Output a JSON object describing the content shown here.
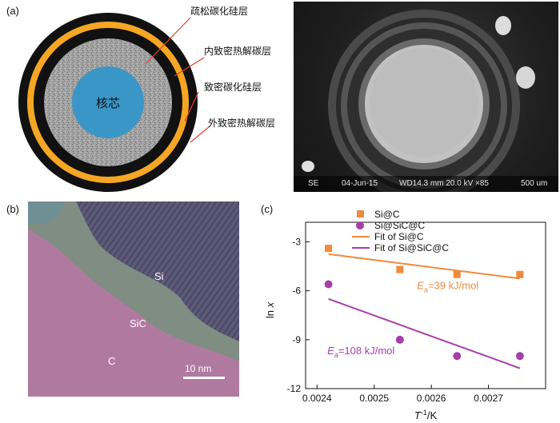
{
  "panels": {
    "a": "(a)",
    "b": "(b)",
    "c": "(c)"
  },
  "schematic": {
    "core_label": "核芯",
    "layers": [
      "疏松碳化硅层",
      "内致密热解碳层",
      "致密碳化硅层",
      "外致密热解碳层"
    ],
    "colors": {
      "core": "#3b96c8",
      "porous_sic": "#9a9a9a",
      "dense_pyc": "#111111",
      "dense_sic": "#f5a623",
      "leader": "#e0412d"
    }
  },
  "sem": {
    "info": [
      "SE",
      "04-Jun-15",
      "WD14.3 mm 20.0 kV ×85",
      "500 um"
    ]
  },
  "tem": {
    "labels": [
      "Si",
      "SiC",
      "C"
    ],
    "scale_bar": "10 nm"
  },
  "chart_data": {
    "type": "scatter",
    "xlabel": "T⁻¹/K",
    "ylabel": "ln x",
    "xlim": [
      0.00238,
      0.0028
    ],
    "ylim": [
      -12,
      -1.8
    ],
    "xticks": [
      "0.0024",
      "0.0025",
      "0.0026",
      "0.0027"
    ],
    "yticks": [
      "-3",
      "-6",
      "-9",
      "-12"
    ],
    "series": [
      {
        "name": "Si@C",
        "marker": "square",
        "color": "#f08a3c",
        "x": [
          0.00242,
          0.002545,
          0.002645,
          0.002755
        ],
        "y": [
          -3.4,
          -4.7,
          -5.0,
          -5.0
        ]
      },
      {
        "name": "Si@SiC@C",
        "marker": "circle",
        "color": "#a540a9",
        "x": [
          0.00242,
          0.002545,
          0.002645,
          0.002755
        ],
        "y": [
          -5.6,
          -9.0,
          -10.0,
          -10.0
        ]
      }
    ],
    "fits": [
      {
        "name": "Fit of Si@C",
        "color": "#f08a3c",
        "x": [
          0.00242,
          0.002755
        ],
        "y": [
          -3.75,
          -5.25
        ]
      },
      {
        "name": "Fit of Si@SiC@C",
        "color": "#a540a9",
        "x": [
          0.00242,
          0.002755
        ],
        "y": [
          -6.5,
          -10.75
        ]
      }
    ],
    "annotations": [
      {
        "label": "Ea=39 kJ/mol",
        "base": "E",
        "sub": "a",
        "rest": "=39 kJ/mol",
        "color": "#f08a3c"
      },
      {
        "label": "Ea=108 kJ/mol",
        "base": "E",
        "sub": "a",
        "rest": "=108 kJ/mol",
        "color": "#a540a9"
      }
    ]
  }
}
